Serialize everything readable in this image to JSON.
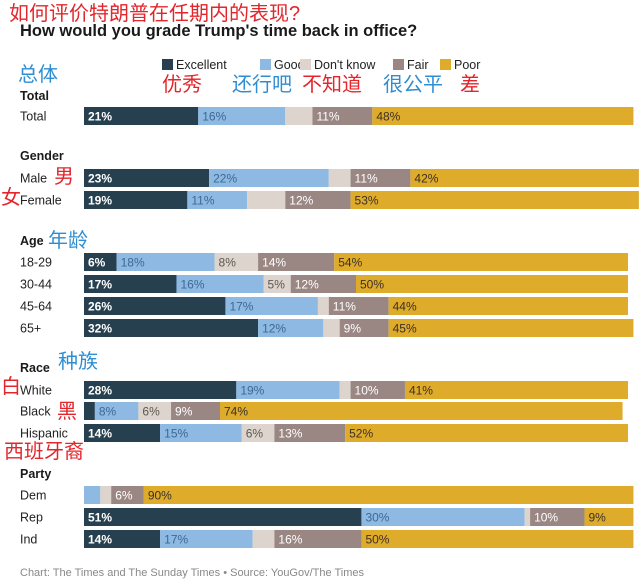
{
  "chart_data": {
    "type": "bar",
    "stacked": true,
    "orientation": "horizontal",
    "title_cn": "如何评价特朗普在任期内的表现?",
    "title": "How would you grade Trump's time back in office?",
    "xlim": [
      0,
      100
    ],
    "series": [
      {
        "name": "Excellent",
        "cn": "优秀",
        "color": "#27404f",
        "values": [
          21,
          23,
          19,
          6,
          17,
          26,
          32,
          28,
          2,
          14,
          0,
          51,
          14
        ]
      },
      {
        "name": "Good",
        "cn": "还行吧",
        "color": "#8db9e3",
        "values": [
          16,
          22,
          11,
          18,
          16,
          17,
          12,
          19,
          8,
          15,
          3,
          30,
          17
        ]
      },
      {
        "name": "Don't know",
        "cn": "不知道",
        "color": "#ddd5cd",
        "values": [
          5,
          4,
          7,
          8,
          5,
          2,
          3,
          2,
          6,
          6,
          2,
          1,
          4
        ]
      },
      {
        "name": "Fair",
        "cn": "很公平",
        "color": "#9a8784",
        "values": [
          11,
          11,
          12,
          14,
          12,
          11,
          9,
          10,
          9,
          13,
          6,
          10,
          16
        ]
      },
      {
        "name": "Poor",
        "cn": "差",
        "color": "#dfab2b",
        "values": [
          48,
          42,
          53,
          54,
          50,
          44,
          45,
          41,
          74,
          52,
          90,
          9,
          50
        ]
      }
    ],
    "labels": [
      [
        "21%",
        "16%",
        "",
        "11%",
        "48%"
      ],
      [
        "23%",
        "22%",
        "",
        "11%",
        "42%"
      ],
      [
        "19%",
        "11%",
        "",
        "12%",
        "53%"
      ],
      [
        "6%",
        "18%",
        "8%",
        "14%",
        "54%"
      ],
      [
        "17%",
        "16%",
        "5%",
        "12%",
        "50%"
      ],
      [
        "26%",
        "17%",
        "",
        "11%",
        "44%"
      ],
      [
        "32%",
        "12%",
        "",
        "9%",
        "45%"
      ],
      [
        "28%",
        "19%",
        "",
        "10%",
        "41%"
      ],
      [
        "",
        "8%",
        "6%",
        "9%",
        "74%"
      ],
      [
        "14%",
        "15%",
        "6%",
        "13%",
        "52%"
      ],
      [
        "",
        "",
        "",
        "6%",
        "90%"
      ],
      [
        "51%",
        "30%",
        "",
        "10%",
        "9%"
      ],
      [
        "14%",
        "17%",
        "",
        "16%",
        "50%"
      ]
    ],
    "groups": [
      {
        "name": "Total",
        "cn": "总体",
        "rows": [
          {
            "label": "Total",
            "cn": ""
          }
        ]
      },
      {
        "name": "Gender",
        "cn": "",
        "rows": [
          {
            "label": "Male",
            "cn": "男"
          },
          {
            "label": "Female",
            "cn": "女"
          }
        ]
      },
      {
        "name": "Age",
        "cn": "年龄",
        "rows": [
          {
            "label": "18-29",
            "cn": ""
          },
          {
            "label": "30-44",
            "cn": ""
          },
          {
            "label": "45-64",
            "cn": ""
          },
          {
            "label": "65+",
            "cn": ""
          }
        ]
      },
      {
        "name": "Race",
        "cn": "种族",
        "rows": [
          {
            "label": "White",
            "cn": "白"
          },
          {
            "label": "Black",
            "cn": "黑"
          },
          {
            "label": "Hispanic",
            "cn": "西班牙裔"
          }
        ]
      },
      {
        "name": "Party",
        "cn": "",
        "rows": [
          {
            "label": "Dem",
            "cn": ""
          },
          {
            "label": "Rep",
            "cn": ""
          },
          {
            "label": "Ind",
            "cn": ""
          }
        ]
      }
    ],
    "source": "Chart: The Times and The Sunday Times • Source: YouGov/The Times"
  },
  "colors": {
    "annotation_red": "#e3262b",
    "annotation_blue": "#2f8ed2",
    "text": "#222222",
    "source_text": "#888888"
  }
}
